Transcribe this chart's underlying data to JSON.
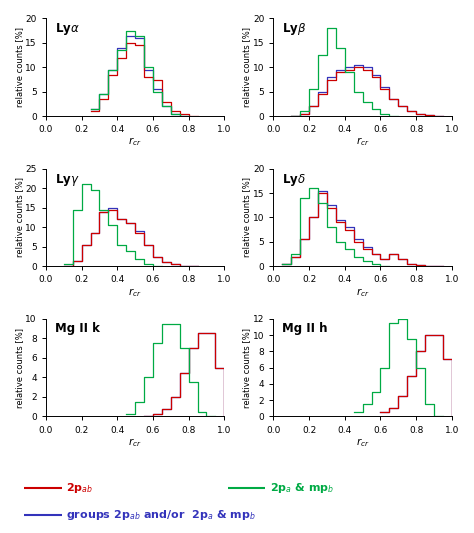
{
  "panels": [
    {
      "title": "Ly$\\alpha$",
      "ylim": [
        0,
        20
      ],
      "yticks": [
        0,
        5,
        10,
        15,
        20
      ],
      "red": {
        "edges": [
          0.25,
          0.3,
          0.35,
          0.4,
          0.45,
          0.5,
          0.55,
          0.6,
          0.65,
          0.7,
          0.75,
          0.8
        ],
        "vals": [
          1.0,
          3.5,
          8.5,
          12.0,
          15.0,
          14.5,
          8.0,
          7.5,
          3.0,
          1.0,
          0.5,
          0.0
        ]
      },
      "green": {
        "edges": [
          0.25,
          0.3,
          0.35,
          0.4,
          0.45,
          0.5,
          0.55,
          0.6,
          0.65,
          0.7,
          0.75
        ],
        "vals": [
          1.5,
          4.5,
          9.5,
          13.5,
          17.5,
          16.5,
          10.0,
          5.0,
          2.0,
          0.5,
          0.0
        ]
      },
      "blue": {
        "edges": [
          0.25,
          0.3,
          0.35,
          0.4,
          0.45,
          0.5,
          0.55,
          0.6,
          0.65,
          0.7,
          0.75
        ],
        "vals": [
          1.5,
          4.5,
          9.5,
          14.0,
          16.5,
          16.0,
          9.5,
          5.5,
          2.0,
          0.5,
          0.0
        ]
      }
    },
    {
      "title": "Ly$\\beta$",
      "ylim": [
        0,
        20
      ],
      "yticks": [
        0,
        5,
        10,
        15,
        20
      ],
      "red": {
        "edges": [
          0.1,
          0.15,
          0.2,
          0.25,
          0.3,
          0.35,
          0.4,
          0.45,
          0.5,
          0.55,
          0.6,
          0.65,
          0.7,
          0.75,
          0.8,
          0.85,
          0.9
        ],
        "vals": [
          0.0,
          0.5,
          2.0,
          4.5,
          7.5,
          9.0,
          9.5,
          10.0,
          9.5,
          8.0,
          5.5,
          3.5,
          2.0,
          1.0,
          0.5,
          0.2,
          0.0
        ]
      },
      "green": {
        "edges": [
          0.1,
          0.15,
          0.2,
          0.25,
          0.3,
          0.35,
          0.4,
          0.45,
          0.5,
          0.55,
          0.6,
          0.65
        ],
        "vals": [
          0.0,
          1.0,
          5.5,
          12.5,
          18.0,
          14.0,
          9.0,
          5.0,
          3.0,
          1.5,
          0.5,
          0.0
        ]
      },
      "blue": {
        "edges": [
          0.1,
          0.15,
          0.2,
          0.25,
          0.3,
          0.35,
          0.4,
          0.45,
          0.5,
          0.55,
          0.6,
          0.65,
          0.7,
          0.75,
          0.8,
          0.85,
          0.9
        ],
        "vals": [
          0.0,
          0.5,
          2.0,
          5.0,
          8.0,
          9.5,
          10.0,
          10.5,
          10.0,
          8.5,
          6.0,
          3.5,
          2.0,
          1.0,
          0.5,
          0.2,
          0.0
        ]
      }
    },
    {
      "title": "Ly$\\gamma$",
      "ylim": [
        0,
        25
      ],
      "yticks": [
        0,
        5,
        10,
        15,
        20,
        25
      ],
      "red": {
        "edges": [
          0.1,
          0.15,
          0.2,
          0.25,
          0.3,
          0.35,
          0.4,
          0.45,
          0.5,
          0.55,
          0.6,
          0.65,
          0.7,
          0.75,
          0.8
        ],
        "vals": [
          0.0,
          1.5,
          5.5,
          8.5,
          14.0,
          14.5,
          12.0,
          11.0,
          8.5,
          5.5,
          2.5,
          1.0,
          0.5,
          0.0,
          0.0
        ]
      },
      "green": {
        "edges": [
          0.1,
          0.15,
          0.2,
          0.25,
          0.3,
          0.35,
          0.4,
          0.45,
          0.5,
          0.55,
          0.6
        ],
        "vals": [
          0.5,
          14.5,
          21.0,
          19.5,
          14.5,
          10.5,
          5.5,
          4.0,
          2.0,
          0.5,
          0.0
        ]
      },
      "blue": {
        "edges": [
          0.1,
          0.15,
          0.2,
          0.25,
          0.3,
          0.35,
          0.4,
          0.45,
          0.5,
          0.55,
          0.6,
          0.65,
          0.7,
          0.75,
          0.8
        ],
        "vals": [
          0.0,
          1.5,
          5.5,
          8.5,
          14.0,
          15.0,
          12.0,
          11.0,
          9.0,
          5.5,
          2.5,
          1.0,
          0.5,
          0.0,
          0.0
        ]
      }
    },
    {
      "title": "Ly$\\delta$",
      "ylim": [
        0,
        20
      ],
      "yticks": [
        0,
        5,
        10,
        15,
        20
      ],
      "red": {
        "edges": [
          0.05,
          0.1,
          0.15,
          0.2,
          0.25,
          0.3,
          0.35,
          0.4,
          0.45,
          0.5,
          0.55,
          0.6,
          0.65,
          0.7,
          0.75,
          0.8,
          0.85,
          0.9
        ],
        "vals": [
          0.5,
          2.0,
          5.5,
          10.0,
          15.0,
          12.0,
          9.0,
          7.5,
          5.0,
          3.5,
          2.5,
          1.5,
          2.5,
          1.5,
          0.5,
          0.2,
          0.0,
          0.0
        ]
      },
      "green": {
        "edges": [
          0.05,
          0.1,
          0.15,
          0.2,
          0.25,
          0.3,
          0.35,
          0.4,
          0.45,
          0.5,
          0.55,
          0.6
        ],
        "vals": [
          0.5,
          2.5,
          14.0,
          16.0,
          13.0,
          8.0,
          5.0,
          3.5,
          2.0,
          1.0,
          0.5,
          0.0
        ]
      },
      "blue": {
        "edges": [
          0.05,
          0.1,
          0.15,
          0.2,
          0.25,
          0.3,
          0.35,
          0.4,
          0.45,
          0.5,
          0.55,
          0.6,
          0.65,
          0.7,
          0.75,
          0.8,
          0.85,
          0.9
        ],
        "vals": [
          0.5,
          2.0,
          5.5,
          10.0,
          15.5,
          12.5,
          9.5,
          8.0,
          5.5,
          4.0,
          2.5,
          1.5,
          2.5,
          1.5,
          0.5,
          0.2,
          0.0,
          0.0
        ]
      }
    },
    {
      "title": "Mg II k",
      "ylim": [
        0,
        10
      ],
      "yticks": [
        0,
        2,
        4,
        6,
        8,
        10
      ],
      "red": {
        "edges": [
          0.55,
          0.6,
          0.65,
          0.7,
          0.75,
          0.8,
          0.85,
          0.9,
          0.95,
          1.0
        ],
        "vals": [
          0.0,
          0.3,
          0.8,
          2.0,
          4.5,
          7.0,
          8.5,
          8.5,
          5.0,
          0.0
        ]
      },
      "green": {
        "edges": [
          0.45,
          0.5,
          0.55,
          0.6,
          0.65,
          0.7,
          0.75,
          0.8,
          0.85,
          0.9
        ],
        "vals": [
          0.3,
          1.5,
          4.0,
          7.5,
          9.5,
          9.5,
          7.0,
          3.5,
          0.5,
          0.0
        ]
      },
      "blue": {
        "edges": [
          0.55,
          0.6,
          0.65,
          0.7,
          0.75,
          0.8,
          0.85,
          0.9,
          0.95,
          1.0
        ],
        "vals": [
          0.0,
          0.3,
          0.8,
          2.0,
          4.5,
          7.0,
          8.5,
          8.5,
          5.0,
          0.0
        ]
      }
    },
    {
      "title": "Mg II h",
      "ylim": [
        0,
        12
      ],
      "yticks": [
        0,
        2,
        4,
        6,
        8,
        10,
        12
      ],
      "red": {
        "edges": [
          0.6,
          0.65,
          0.7,
          0.75,
          0.8,
          0.85,
          0.9,
          0.95,
          1.0
        ],
        "vals": [
          0.5,
          1.0,
          2.5,
          5.0,
          8.0,
          10.0,
          10.0,
          7.0,
          0.0
        ]
      },
      "green": {
        "edges": [
          0.45,
          0.5,
          0.55,
          0.6,
          0.65,
          0.7,
          0.75,
          0.8,
          0.85,
          0.9
        ],
        "vals": [
          0.5,
          1.5,
          3.0,
          6.0,
          11.5,
          12.0,
          9.5,
          6.0,
          1.5,
          0.0
        ]
      },
      "blue": {
        "edges": [
          0.6,
          0.65,
          0.7,
          0.75,
          0.8,
          0.85,
          0.9,
          0.95,
          1.0
        ],
        "vals": [
          0.5,
          1.0,
          2.5,
          5.0,
          8.0,
          10.0,
          10.0,
          7.0,
          0.0
        ]
      }
    }
  ],
  "colors": {
    "red": "#cc0000",
    "green": "#00aa44",
    "blue": "#3333bb"
  },
  "xlabel": "$r_{cr}$",
  "ylabel": "relative counts [%]",
  "legend": {
    "red_label": "2p$_{ab}$",
    "green_label": "2p$_a$ & mp$_b$",
    "blue_label": "groups 2p$_{ab}$ and/or  2p$_a$ & mp$_b$"
  }
}
